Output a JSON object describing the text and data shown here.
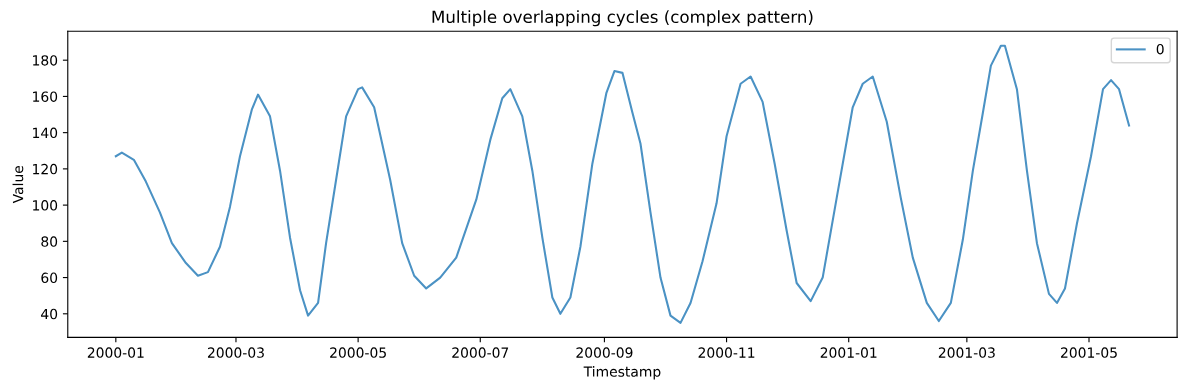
{
  "chart_data": {
    "type": "line",
    "title": "Multiple overlapping cycles (complex pattern)",
    "xlabel": "Timestamp",
    "ylabel": "Value",
    "x": [
      "2000-01-01",
      "2000-01-04",
      "2000-01-10",
      "2000-01-16",
      "2000-01-23",
      "2000-01-29",
      "2000-02-05",
      "2000-02-11",
      "2000-02-16",
      "2000-02-22",
      "2000-02-27",
      "2000-03-03",
      "2000-03-09",
      "2000-03-12",
      "2000-03-18",
      "2000-03-23",
      "2000-03-28",
      "2000-04-02",
      "2000-04-06",
      "2000-04-11",
      "2000-04-15",
      "2000-04-20",
      "2000-04-25",
      "2000-05-01",
      "2000-05-03",
      "2000-05-09",
      "2000-05-17",
      "2000-05-23",
      "2000-05-29",
      "2000-06-04",
      "2000-06-11",
      "2000-06-19",
      "2000-06-29",
      "2000-07-06",
      "2000-07-12",
      "2000-07-16",
      "2000-07-22",
      "2000-07-27",
      "2000-08-01",
      "2000-08-06",
      "2000-08-10",
      "2000-08-15",
      "2000-08-20",
      "2000-08-26",
      "2000-09-02",
      "2000-09-06",
      "2000-09-10",
      "2000-09-15",
      "2000-09-19",
      "2000-09-24",
      "2000-09-29",
      "2000-10-04",
      "2000-10-09",
      "2000-10-14",
      "2000-10-20",
      "2000-10-27",
      "2000-11-01",
      "2000-11-08",
      "2000-11-13",
      "2000-11-19",
      "2000-11-25",
      "2000-12-01",
      "2000-12-06",
      "2000-12-13",
      "2000-12-19",
      "2000-12-26",
      "2001-01-03",
      "2001-01-08",
      "2001-01-13",
      "2001-01-20",
      "2001-01-27",
      "2001-02-02",
      "2001-02-09",
      "2001-02-15",
      "2001-02-21",
      "2001-02-27",
      "2001-03-04",
      "2001-03-09",
      "2001-03-13",
      "2001-03-18",
      "2001-03-20",
      "2001-03-26",
      "2001-03-31",
      "2001-04-05",
      "2001-04-11",
      "2001-04-15",
      "2001-04-19",
      "2001-04-25",
      "2001-05-02",
      "2001-05-08",
      "2001-05-12",
      "2001-05-16",
      "2001-05-21"
    ],
    "series": [
      {
        "name": "0",
        "color": "#4b92c4",
        "values": [
          127,
          129,
          125,
          113,
          96,
          79,
          68,
          61,
          63,
          77,
          99,
          127,
          153,
          161,
          149,
          119,
          82,
          53,
          39,
          46,
          79,
          114,
          149,
          164,
          165,
          154,
          114,
          79,
          61,
          54,
          60,
          71,
          103,
          136,
          159,
          164,
          149,
          119,
          82,
          49,
          40,
          49,
          77,
          123,
          162,
          174,
          173,
          151,
          134,
          96,
          60,
          39,
          35,
          46,
          69,
          101,
          138,
          167,
          171,
          157,
          123,
          86,
          57,
          47,
          60,
          104,
          154,
          167,
          171,
          146,
          104,
          71,
          46,
          36,
          46,
          81,
          119,
          151,
          177,
          188,
          188,
          164,
          119,
          79,
          51,
          46,
          54,
          90,
          127,
          164,
          169,
          164,
          144
        ]
      }
    ],
    "xlim": [
      "1999-12-08",
      "2001-06-14"
    ],
    "xticks": [
      {
        "value": "2000-01-01",
        "label": "2000-01"
      },
      {
        "value": "2000-03-01",
        "label": "2000-03"
      },
      {
        "value": "2000-05-01",
        "label": "2000-05"
      },
      {
        "value": "2000-07-01",
        "label": "2000-07"
      },
      {
        "value": "2000-09-01",
        "label": "2000-09"
      },
      {
        "value": "2000-11-01",
        "label": "2000-11"
      },
      {
        "value": "2001-01-01",
        "label": "2001-01"
      },
      {
        "value": "2001-03-01",
        "label": "2001-03"
      },
      {
        "value": "2001-05-01",
        "label": "2001-05"
      }
    ],
    "ylim": [
      27,
      196
    ],
    "yticks": [
      40,
      60,
      80,
      100,
      120,
      140,
      160,
      180
    ],
    "legend": "top right",
    "grid": false,
    "marker": "none",
    "line_style": "solid"
  }
}
